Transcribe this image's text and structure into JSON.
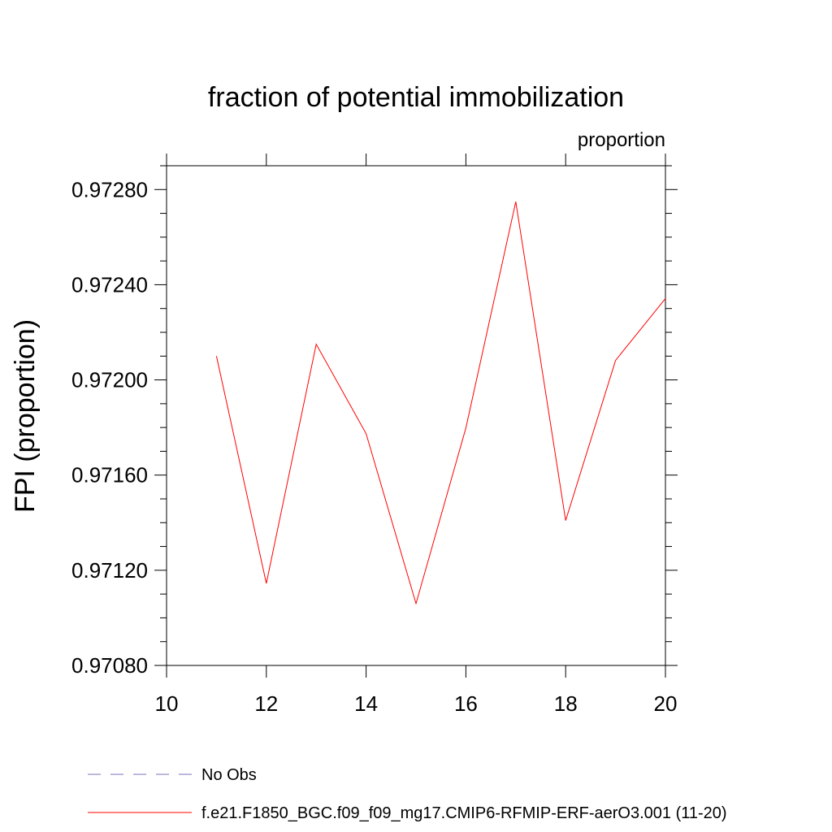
{
  "chart_data": {
    "type": "line",
    "title": "fraction of potential immobilization",
    "units_label": "proportion",
    "y_label": "FPI  (proportion)",
    "x": [
      11,
      12,
      13,
      14,
      15,
      16,
      17,
      18,
      19,
      20
    ],
    "series": [
      {
        "name": "f.e21.F1850_BGC.f09_f09_mg17.CMIP6-RFMIP-ERF-aerO3.001 (11-20)",
        "color": "#ff0000",
        "values": [
          0.9721,
          0.971145,
          0.97215,
          0.971774,
          0.97106,
          0.971798,
          0.972749,
          0.971409,
          0.972082,
          0.972342
        ]
      }
    ],
    "reference_legend": [
      {
        "name": "No Obs",
        "color": "#7a70b8",
        "dashed": true
      }
    ],
    "xlim": [
      10,
      20
    ],
    "xticks": [
      10,
      12,
      14,
      16,
      18,
      20
    ],
    "ylim": [
      0.9708,
      0.9729
    ],
    "yticks": [
      {
        "value": 0.9708,
        "label": "0.97080"
      },
      {
        "value": 0.9712,
        "label": "0.97120"
      },
      {
        "value": 0.9716,
        "label": "0.97160"
      },
      {
        "value": 0.972,
        "label": "0.97200"
      },
      {
        "value": 0.9724,
        "label": "0.97240"
      },
      {
        "value": 0.9728,
        "label": "0.97280"
      }
    ],
    "yminorticks": [
      0.9709,
      0.971,
      0.9711,
      0.9713,
      0.9714,
      0.9715,
      0.9717,
      0.9718,
      0.9719,
      0.9721,
      0.9722,
      0.9723,
      0.9725,
      0.9726,
      0.9727,
      0.9729
    ]
  }
}
